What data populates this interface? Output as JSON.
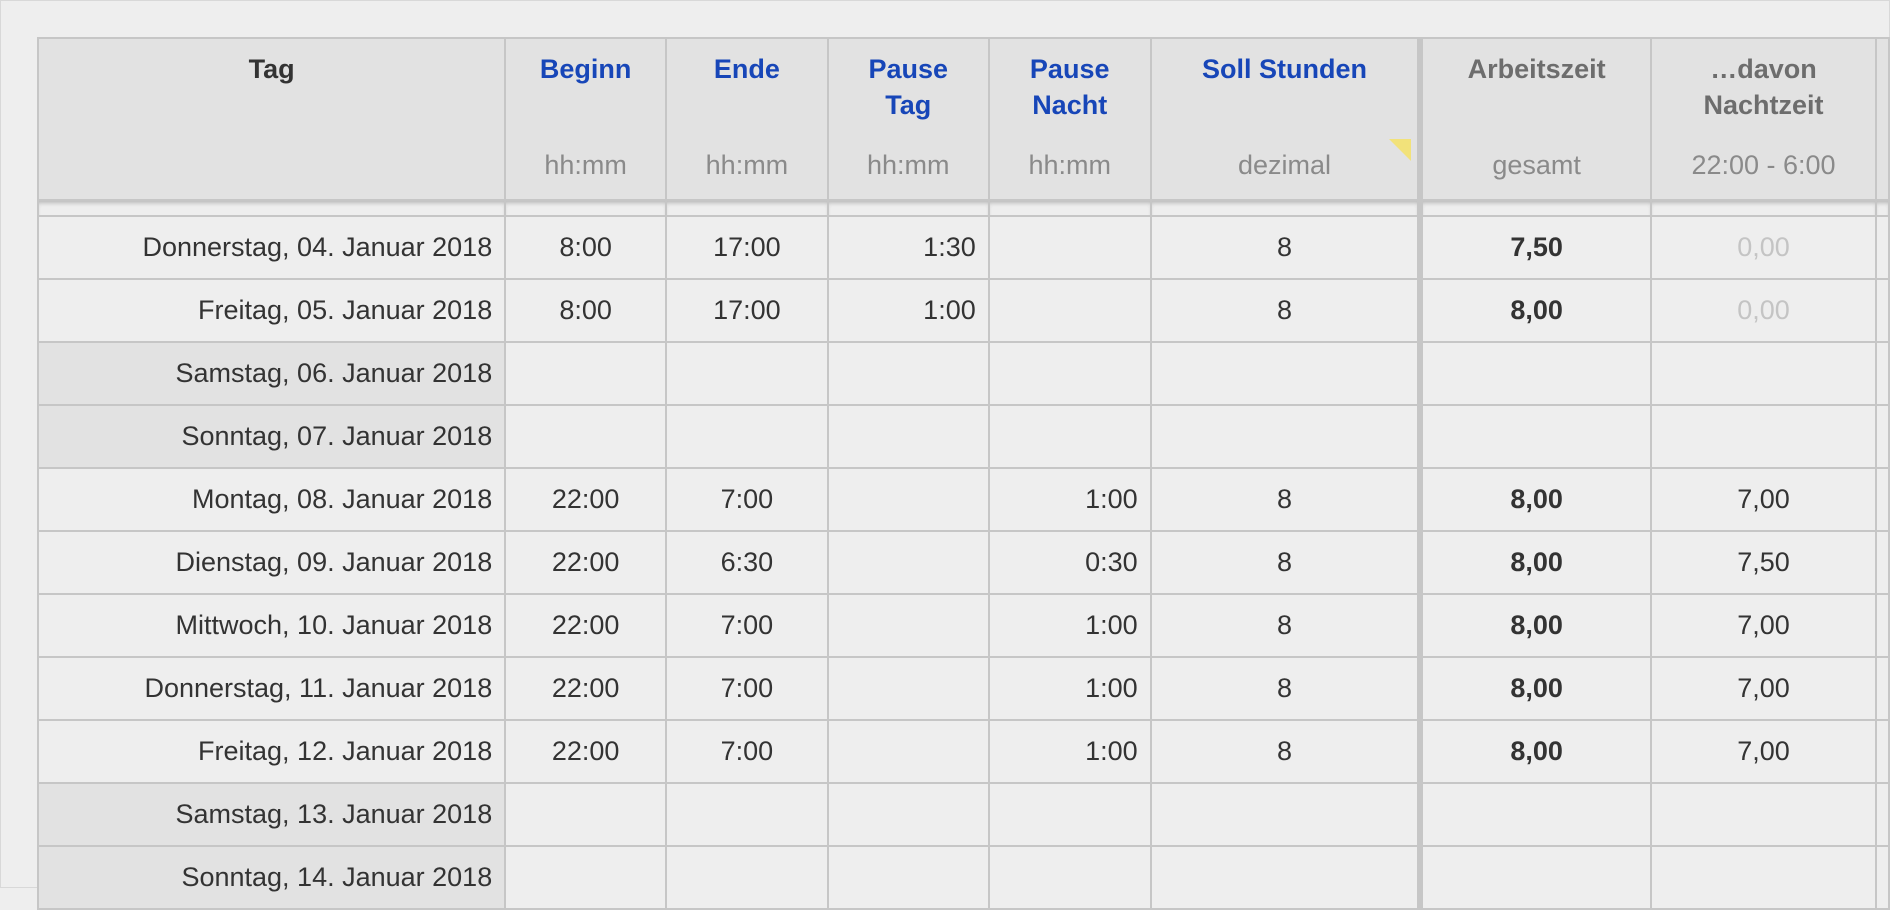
{
  "columns": [
    {
      "title": "Tag",
      "sub": ""
    },
    {
      "title": "Beginn",
      "sub": "hh:mm"
    },
    {
      "title": "Ende",
      "sub": "hh:mm"
    },
    {
      "title": "Pause Tag",
      "sub": "hh:mm"
    },
    {
      "title": "Pause Nacht",
      "sub": "hh:mm"
    },
    {
      "title": "Soll Stunden",
      "sub": "dezimal"
    },
    {
      "title": "Arbeitszeit",
      "sub": "gesamt"
    },
    {
      "title": "…davon Nachtzeit",
      "sub": "22:00 - 6:00"
    }
  ],
  "colors": {
    "header_link": "#1746b8",
    "header_grey": "#6d6d6d",
    "weekend_bg": "#e2e2e2",
    "comment_marker": "#f2e27a"
  },
  "rows": [
    {
      "tag": "Donnerstag, 04. Januar 2018",
      "beginn": "8:00",
      "ende": "17:00",
      "pause_tag": "1:30",
      "pause_nacht": "",
      "soll": "8",
      "arbeitszeit": "7,50",
      "nachtzeit": "0,00",
      "weekend": false,
      "night_muted": true
    },
    {
      "tag": "Freitag, 05. Januar 2018",
      "beginn": "8:00",
      "ende": "17:00",
      "pause_tag": "1:00",
      "pause_nacht": "",
      "soll": "8",
      "arbeitszeit": "8,00",
      "nachtzeit": "0,00",
      "weekend": false,
      "night_muted": true
    },
    {
      "tag": "Samstag, 06. Januar 2018",
      "beginn": "",
      "ende": "",
      "pause_tag": "",
      "pause_nacht": "",
      "soll": "",
      "arbeitszeit": "",
      "nachtzeit": "",
      "weekend": true
    },
    {
      "tag": "Sonntag, 07. Januar 2018",
      "beginn": "",
      "ende": "",
      "pause_tag": "",
      "pause_nacht": "",
      "soll": "",
      "arbeitszeit": "",
      "nachtzeit": "",
      "weekend": true
    },
    {
      "tag": "Montag, 08. Januar 2018",
      "beginn": "22:00",
      "ende": "7:00",
      "pause_tag": "",
      "pause_nacht": "1:00",
      "soll": "8",
      "arbeitszeit": "8,00",
      "nachtzeit": "7,00",
      "weekend": false
    },
    {
      "tag": "Dienstag, 09. Januar 2018",
      "beginn": "22:00",
      "ende": "6:30",
      "pause_tag": "",
      "pause_nacht": "0:30",
      "soll": "8",
      "arbeitszeit": "8,00",
      "nachtzeit": "7,50",
      "weekend": false
    },
    {
      "tag": "Mittwoch, 10. Januar 2018",
      "beginn": "22:00",
      "ende": "7:00",
      "pause_tag": "",
      "pause_nacht": "1:00",
      "soll": "8",
      "arbeitszeit": "8,00",
      "nachtzeit": "7,00",
      "weekend": false
    },
    {
      "tag": "Donnerstag, 11. Januar 2018",
      "beginn": "22:00",
      "ende": "7:00",
      "pause_tag": "",
      "pause_nacht": "1:00",
      "soll": "8",
      "arbeitszeit": "8,00",
      "nachtzeit": "7,00",
      "weekend": false
    },
    {
      "tag": "Freitag, 12. Januar 2018",
      "beginn": "22:00",
      "ende": "7:00",
      "pause_tag": "",
      "pause_nacht": "1:00",
      "soll": "8",
      "arbeitszeit": "8,00",
      "nachtzeit": "7,00",
      "weekend": false
    },
    {
      "tag": "Samstag, 13. Januar 2018",
      "beginn": "",
      "ende": "",
      "pause_tag": "",
      "pause_nacht": "",
      "soll": "",
      "arbeitszeit": "",
      "nachtzeit": "",
      "weekend": true
    },
    {
      "tag": "Sonntag, 14. Januar 2018",
      "beginn": "",
      "ende": "",
      "pause_tag": "",
      "pause_nacht": "",
      "soll": "",
      "arbeitszeit": "",
      "nachtzeit": "",
      "weekend": true
    }
  ]
}
